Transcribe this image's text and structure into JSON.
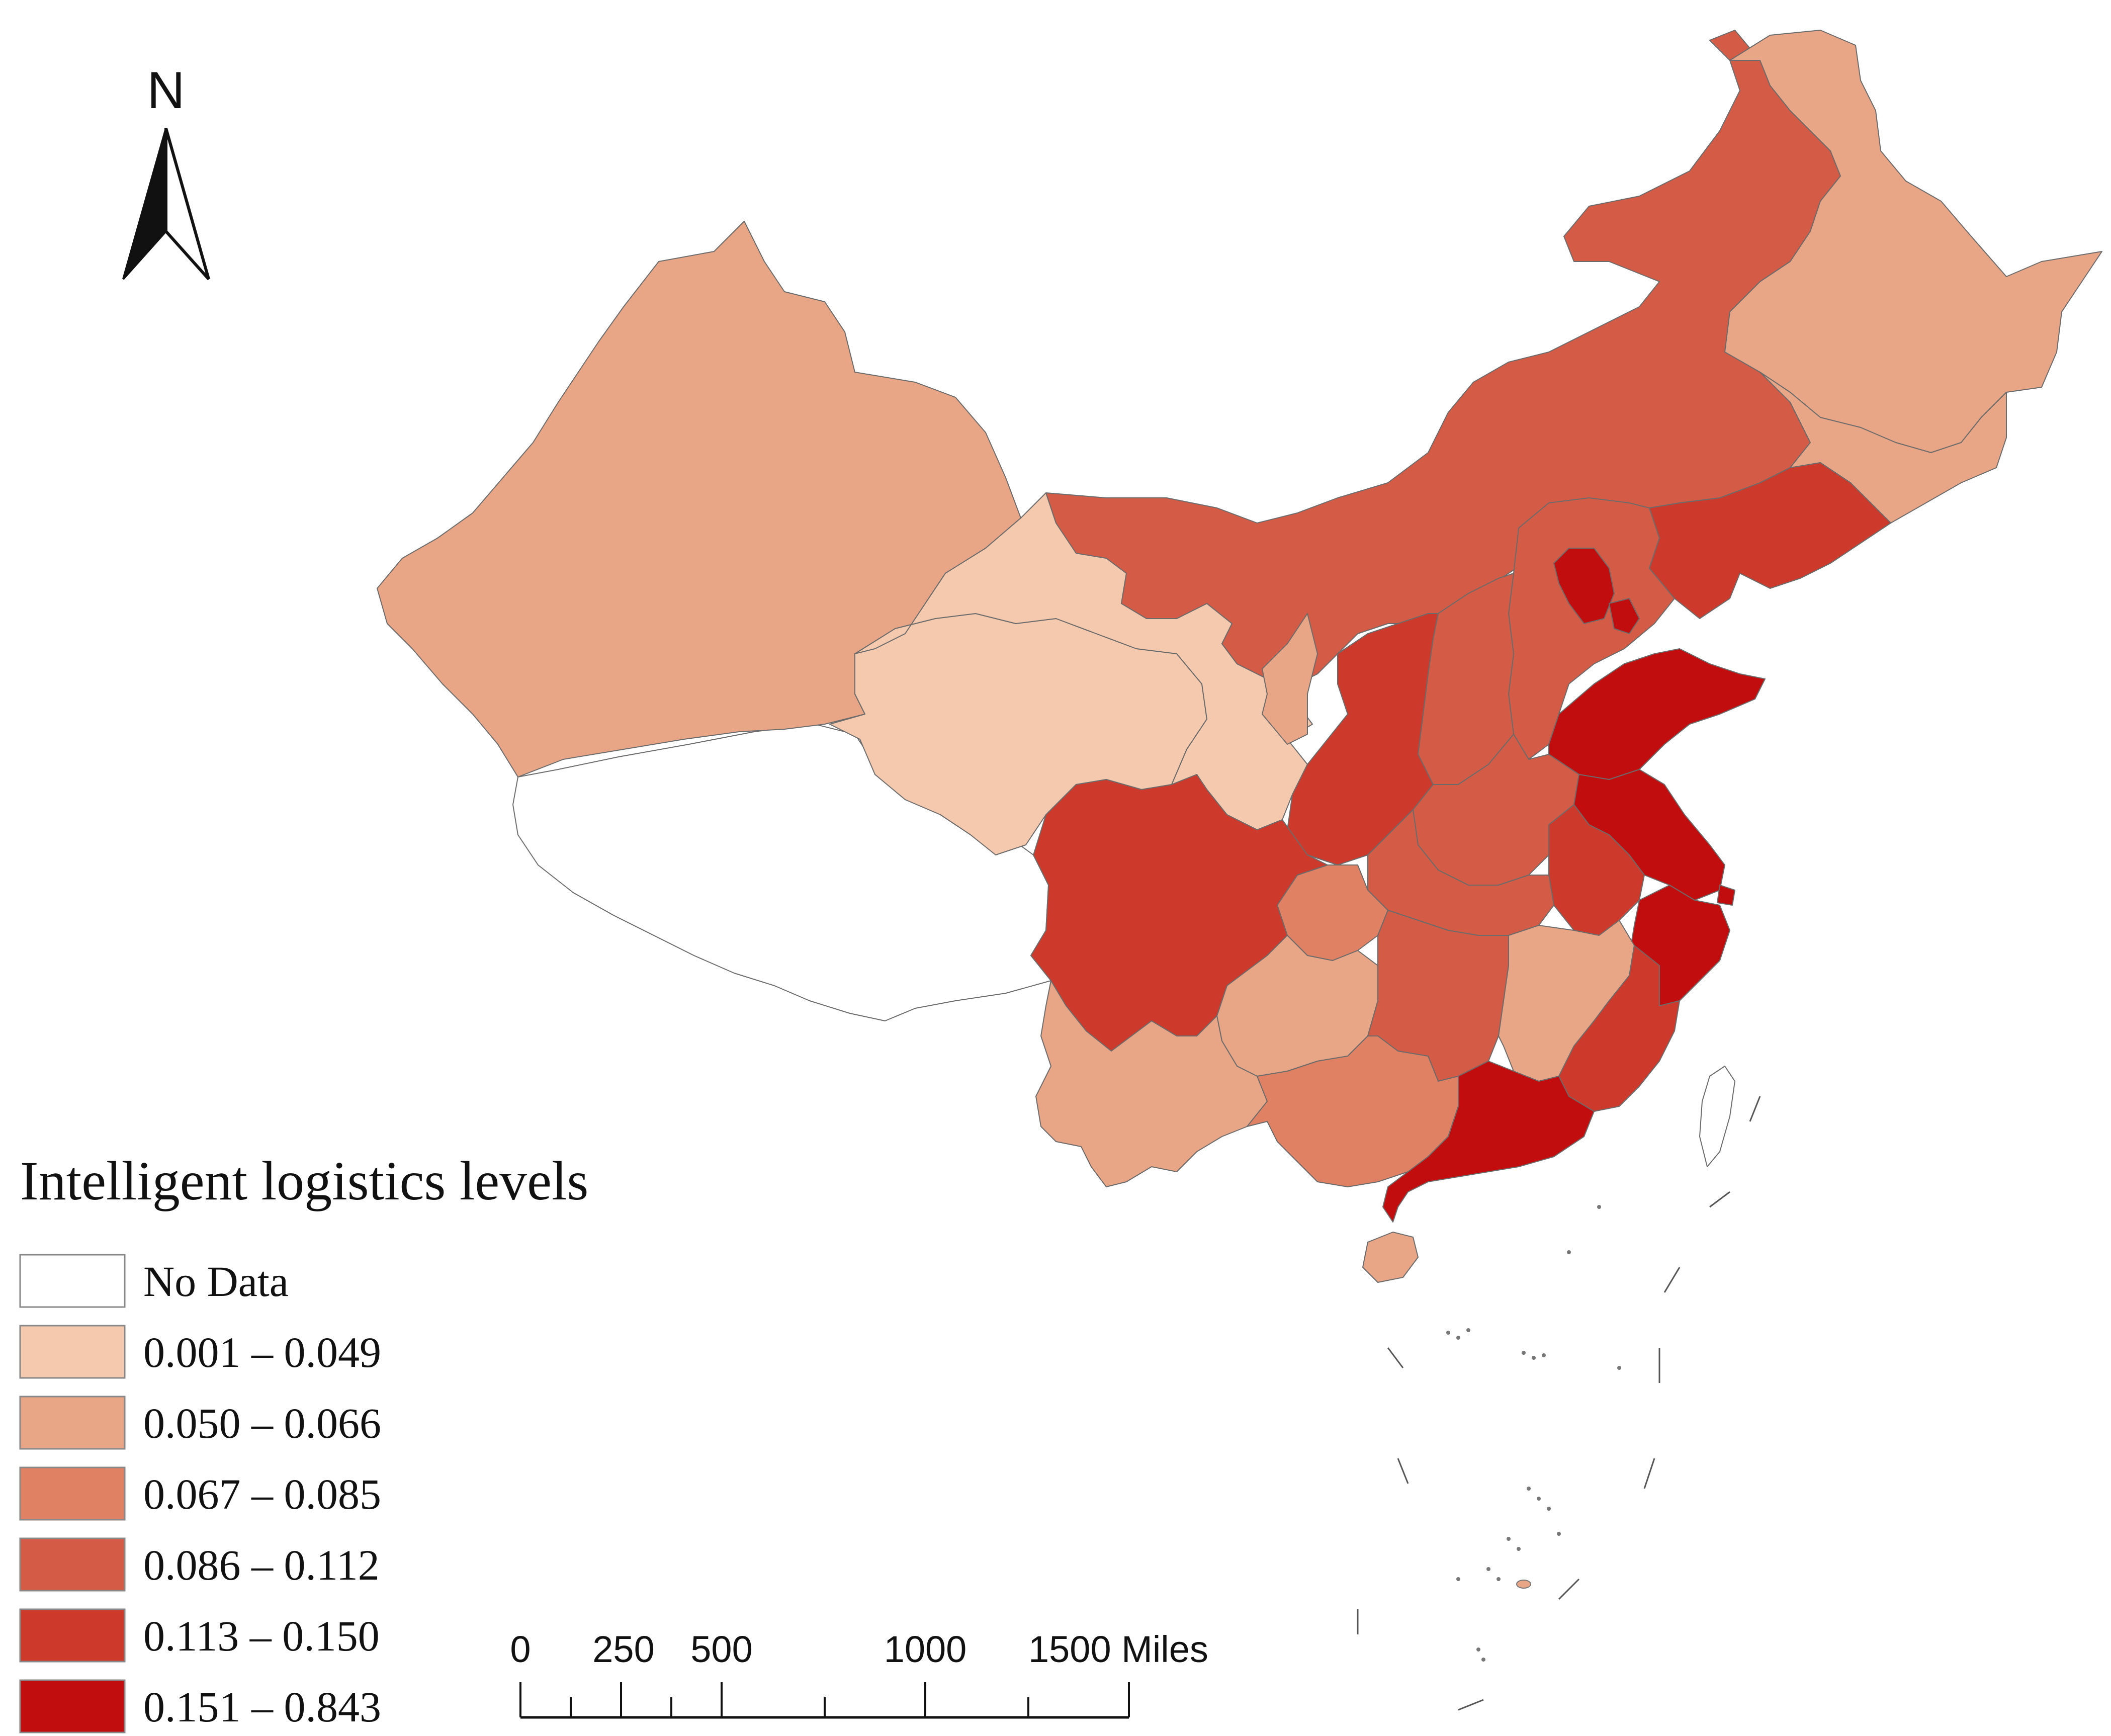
{
  "north_arrow": {
    "label": "N",
    "icon": "north-arrow-icon"
  },
  "legend": {
    "title": "Intelligent logistics levels",
    "items": [
      {
        "label": "No Data",
        "color": "#ffffff"
      },
      {
        "label": "0.001 – 0.049",
        "color": "#f4c9ad"
      },
      {
        "label": "0.050 – 0.066",
        "color": "#e9a686"
      },
      {
        "label": "0.067 – 0.085",
        "color": "#e08163"
      },
      {
        "label": "0.086 – 0.112",
        "color": "#d45b45"
      },
      {
        "label": "0.113 – 0.150",
        "color": "#cd3a2c"
      },
      {
        "label": "0.151 – 0.843",
        "color": "#c20d0e"
      }
    ]
  },
  "scale_bar": {
    "labels": [
      "0",
      "250",
      "500",
      "1000",
      "1500 Miles"
    ]
  }
}
